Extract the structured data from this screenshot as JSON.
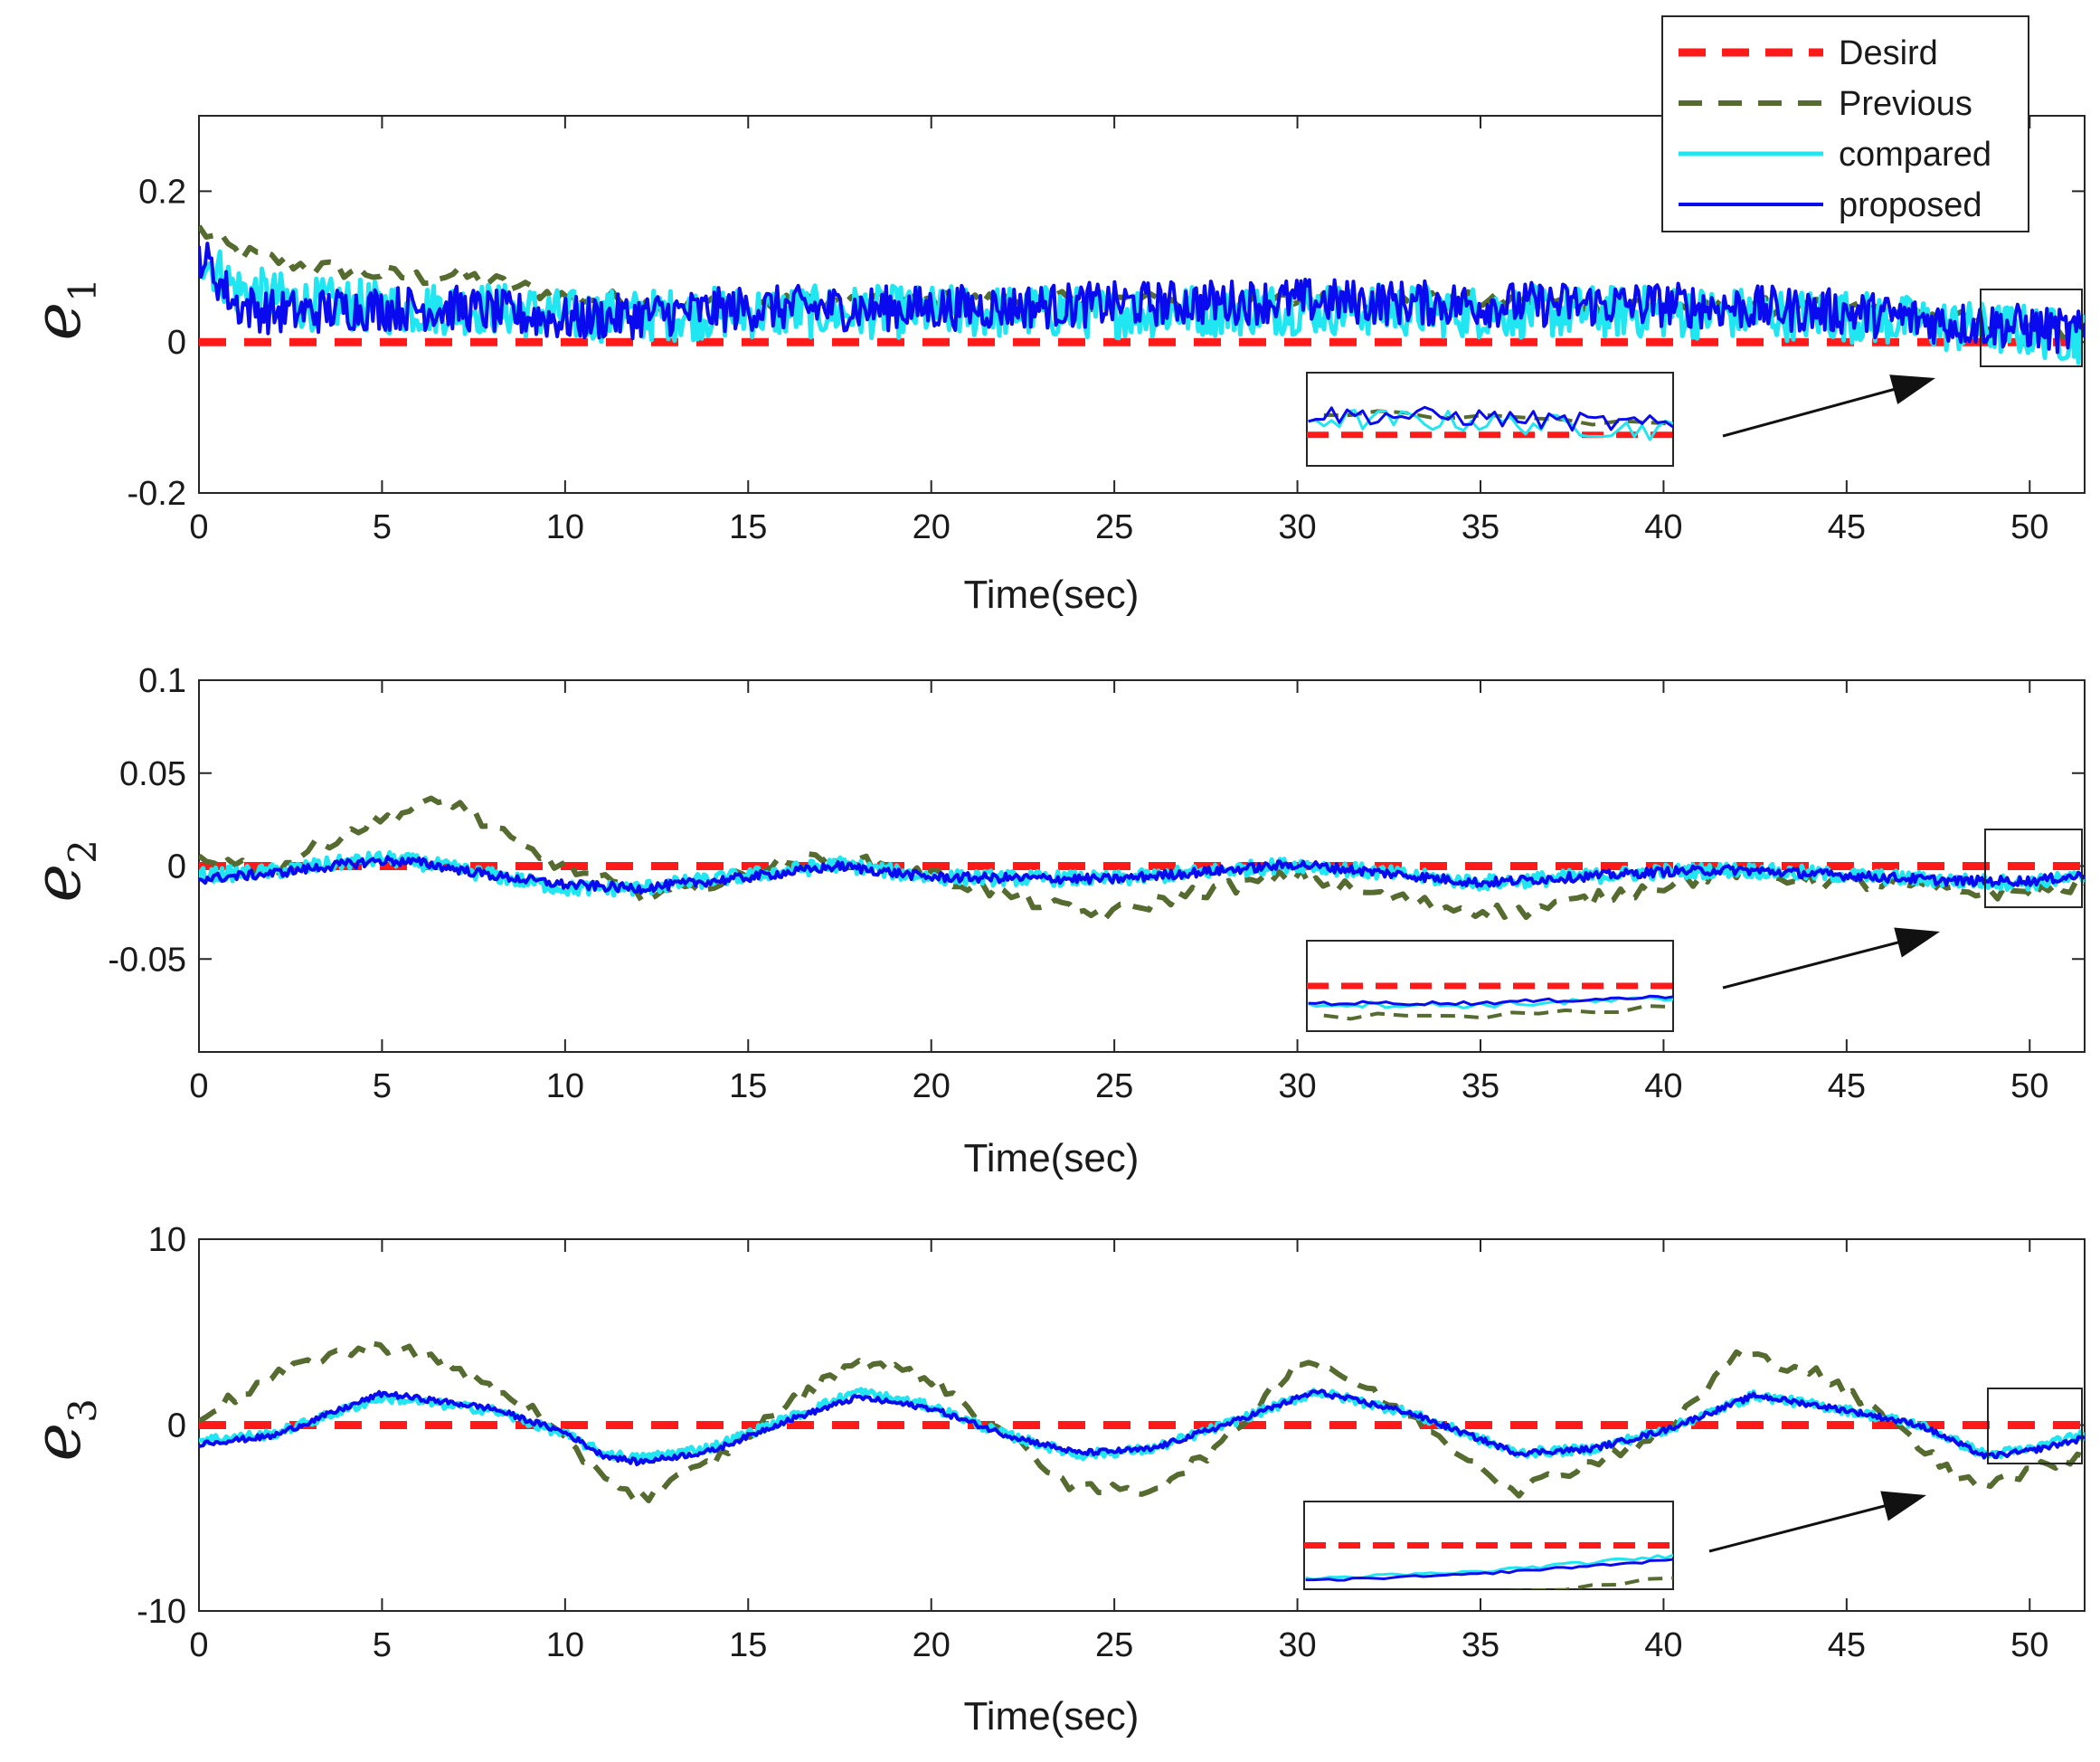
{
  "chart_data": [
    {
      "type": "line",
      "ylabel": "e",
      "ylabel_subscript": "1",
      "xlabel": "Time(sec)",
      "xlim": [
        0,
        51.5
      ],
      "ylim": [
        -0.2,
        0.3
      ],
      "xticks": [
        0,
        5,
        10,
        15,
        20,
        25,
        30,
        35,
        40,
        45,
        50
      ],
      "yticks": [
        -0.2,
        0,
        0.2
      ],
      "ytick_labels": [
        "-0.2",
        "0",
        "0.2"
      ],
      "legend": {
        "position": "top-right",
        "entries": [
          {
            "label": "Desird",
            "series": "desired"
          },
          {
            "label": "Previous",
            "series": "previous"
          },
          {
            "label": "compared",
            "series": "compared"
          },
          {
            "label": "proposed",
            "series": "proposed"
          }
        ]
      },
      "zoom_window": {
        "x_range": [
          48.8,
          51.5
        ],
        "y_range": [
          -0.035,
          0.07
        ]
      },
      "series": [
        {
          "name": "Desird",
          "key": "desired",
          "color": "#ff1a1a",
          "style": "dashed",
          "x": [
            0,
            51.5
          ],
          "y": [
            0,
            0
          ]
        },
        {
          "name": "Previous",
          "key": "previous",
          "color": "#556b2f",
          "style": "dashed",
          "x": [
            0,
            1,
            2,
            3,
            4,
            5,
            6,
            7,
            8,
            9,
            10,
            12,
            15,
            20,
            25,
            30,
            35,
            40,
            45,
            48,
            50,
            51.5
          ],
          "y": [
            0.15,
            0.12,
            0.11,
            0.1,
            0.095,
            0.09,
            0.085,
            0.09,
            0.08,
            0.07,
            0.06,
            0.055,
            0.05,
            0.055,
            0.055,
            0.055,
            0.055,
            0.05,
            0.045,
            0.03,
            0.02,
            0.01
          ],
          "noise": 0.012
        },
        {
          "name": "compared",
          "key": "compared",
          "color": "#1fe6f0",
          "style": "solid",
          "x": [
            0,
            1,
            2,
            3,
            4,
            5,
            6,
            7,
            8,
            9,
            10,
            12,
            15,
            20,
            25,
            30,
            35,
            40,
            45,
            48,
            50,
            51.5
          ],
          "y": [
            0.12,
            0.07,
            0.06,
            0.05,
            0.05,
            0.045,
            0.045,
            0.045,
            0.045,
            0.04,
            0.035,
            0.035,
            0.04,
            0.04,
            0.04,
            0.045,
            0.04,
            0.04,
            0.035,
            0.02,
            0.015,
            0.005
          ],
          "noise": 0.035
        },
        {
          "name": "proposed",
          "key": "proposed",
          "color": "#0a0aee",
          "style": "solid",
          "x": [
            0,
            1,
            2,
            3,
            4,
            5,
            6,
            7,
            8,
            9,
            10,
            12,
            15,
            20,
            25,
            30,
            35,
            40,
            45,
            48,
            50,
            51.5
          ],
          "y": [
            0.12,
            0.05,
            0.04,
            0.04,
            0.045,
            0.045,
            0.045,
            0.045,
            0.04,
            0.035,
            0.03,
            0.035,
            0.045,
            0.045,
            0.05,
            0.055,
            0.05,
            0.05,
            0.04,
            0.025,
            0.02,
            0.01
          ],
          "noise": 0.03
        }
      ]
    },
    {
      "type": "line",
      "ylabel": "e",
      "ylabel_subscript": "2",
      "xlabel": "Time(sec)",
      "xlim": [
        0,
        51.5
      ],
      "ylim": [
        -0.1,
        0.1
      ],
      "xticks": [
        0,
        5,
        10,
        15,
        20,
        25,
        30,
        35,
        40,
        45,
        50
      ],
      "yticks": [
        -0.05,
        0,
        0.05,
        0.1
      ],
      "ytick_labels": [
        "-0.05",
        "0",
        "0.05",
        "0.1"
      ],
      "zoom_window": {
        "x_range": [
          48.8,
          51.5
        ],
        "y_range": [
          -0.021,
          0.021
        ]
      },
      "series": [
        {
          "name": "Desird",
          "key": "desired",
          "color": "#ff1a1a",
          "style": "dashed",
          "x": [
            0,
            51.5
          ],
          "y": [
            0,
            0
          ]
        },
        {
          "name": "Previous",
          "key": "previous",
          "color": "#556b2f",
          "style": "dashed",
          "x": [
            0,
            2,
            4,
            5,
            6,
            7,
            8,
            9,
            10,
            12,
            14,
            16,
            17.5,
            20,
            22,
            24,
            25,
            27,
            30,
            32,
            34,
            36,
            38,
            40,
            42,
            44,
            46,
            48,
            50,
            51.5
          ],
          "y": [
            0.005,
            -0.002,
            0.018,
            0.025,
            0.032,
            0.035,
            0.02,
            0.008,
            0.0,
            -0.015,
            -0.01,
            0.002,
            0.004,
            -0.005,
            -0.015,
            -0.025,
            -0.025,
            -0.015,
            -0.005,
            -0.015,
            -0.022,
            -0.025,
            -0.018,
            -0.01,
            -0.003,
            -0.008,
            -0.01,
            -0.014,
            -0.014,
            -0.01
          ],
          "noise": 0.004
        },
        {
          "name": "compared",
          "key": "compared",
          "color": "#1fe6f0",
          "style": "solid",
          "x": [
            0,
            2,
            4,
            5,
            6,
            8,
            10,
            12,
            15,
            17.5,
            20,
            25,
            30,
            32,
            35,
            40,
            42,
            45,
            48,
            50,
            51.5
          ],
          "y": [
            -0.005,
            -0.003,
            0.002,
            0.004,
            0.002,
            -0.005,
            -0.012,
            -0.012,
            -0.005,
            0.001,
            -0.006,
            -0.007,
            0.001,
            -0.003,
            -0.009,
            -0.003,
            -0.002,
            -0.005,
            -0.008,
            -0.009,
            -0.006
          ],
          "noise": 0.004
        },
        {
          "name": "proposed",
          "key": "proposed",
          "color": "#0a0aee",
          "style": "solid",
          "x": [
            0,
            2,
            4,
            5,
            6,
            8,
            10,
            12,
            15,
            17.5,
            20,
            25,
            30,
            32,
            35,
            40,
            42,
            45,
            48,
            50,
            51.5
          ],
          "y": [
            -0.007,
            -0.004,
            0.001,
            0.003,
            0.002,
            -0.005,
            -0.01,
            -0.012,
            -0.006,
            0.0,
            -0.006,
            -0.007,
            0.001,
            -0.003,
            -0.009,
            -0.003,
            -0.002,
            -0.005,
            -0.008,
            -0.008,
            -0.005
          ],
          "noise": 0.0025
        }
      ]
    },
    {
      "type": "line",
      "ylabel": "e",
      "ylabel_subscript": "3",
      "xlabel": "Time(sec)",
      "xlim": [
        0,
        51.5
      ],
      "ylim": [
        -10,
        10
      ],
      "xticks": [
        0,
        5,
        10,
        15,
        20,
        25,
        30,
        35,
        40,
        45,
        50
      ],
      "yticks": [
        -10,
        0,
        10
      ],
      "ytick_labels": [
        "-10",
        "0",
        "10"
      ],
      "zoom_window": {
        "x_range": [
          48.8,
          51.5
        ],
        "y_range": [
          -2.1,
          2.1
        ]
      },
      "series": [
        {
          "name": "Desird",
          "key": "desired",
          "color": "#ff1a1a",
          "style": "dashed",
          "x": [
            0,
            51.5
          ],
          "y": [
            0,
            0
          ]
        },
        {
          "name": "Previous",
          "key": "previous",
          "color": "#556b2f",
          "style": "dashed",
          "x": [
            0,
            2,
            3.5,
            5.5,
            7,
            9,
            10,
            12,
            14,
            16,
            18,
            20,
            22,
            24,
            26,
            28,
            30,
            31,
            33,
            36,
            38,
            40,
            42,
            44,
            46,
            48,
            49,
            50,
            51.5
          ],
          "y": [
            0.5,
            2.5,
            3.8,
            4.3,
            3.0,
            1.0,
            -1.0,
            -4.0,
            -2.0,
            1.0,
            3.5,
            2.5,
            -0.5,
            -3.5,
            -3.5,
            -1.0,
            3.5,
            3.0,
            0.5,
            -3.5,
            -2.0,
            -0.5,
            3.8,
            3.0,
            0.5,
            -2.8,
            -3.0,
            -2.5,
            -1.5
          ],
          "noise": 0.35
        },
        {
          "name": "compared",
          "key": "compared",
          "color": "#1fe6f0",
          "style": "solid",
          "x": [
            0,
            2,
            5,
            8,
            10,
            11,
            12,
            14,
            16,
            18,
            20,
            22,
            24,
            26,
            28,
            30.5,
            33,
            36,
            38,
            40,
            42.5,
            45,
            47,
            48.8,
            50,
            51.5
          ],
          "y": [
            -0.8,
            -0.5,
            1.5,
            0.8,
            -0.5,
            -1.5,
            -1.8,
            -1.2,
            0.3,
            1.8,
            1.0,
            -0.5,
            -1.6,
            -1.3,
            0.0,
            1.8,
            0.7,
            -1.5,
            -1.3,
            -0.3,
            1.6,
            0.8,
            0.0,
            -1.6,
            -1.3,
            -0.5
          ],
          "noise": 0.25
        },
        {
          "name": "proposed",
          "key": "proposed",
          "color": "#0a0aee",
          "style": "solid",
          "x": [
            0,
            2,
            5,
            8,
            10,
            11,
            12,
            14,
            16,
            18,
            20,
            22,
            24,
            26,
            28,
            30.5,
            33,
            36,
            38,
            40,
            42.5,
            45,
            47,
            48.8,
            50,
            51.5
          ],
          "y": [
            -1.0,
            -0.6,
            1.7,
            0.9,
            -0.4,
            -1.6,
            -2.0,
            -1.4,
            0.2,
            1.5,
            0.9,
            -0.5,
            -1.5,
            -1.3,
            0.0,
            1.8,
            0.7,
            -1.5,
            -1.3,
            -0.3,
            1.6,
            0.8,
            0.0,
            -1.7,
            -1.4,
            -0.7
          ],
          "noise": 0.15
        }
      ]
    }
  ]
}
